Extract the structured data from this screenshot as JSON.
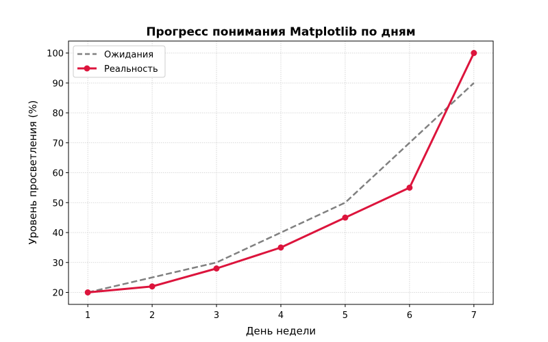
{
  "chart_data": {
    "type": "line",
    "title": "Прогресс понимания Matplotlib по дням",
    "xlabel": "День недели",
    "ylabel": "Уровень просветления (%)",
    "x": [
      1,
      2,
      3,
      4,
      5,
      6,
      7
    ],
    "xticks": [
      "1",
      "2",
      "3",
      "4",
      "5",
      "6",
      "7"
    ],
    "yticks": [
      "20",
      "30",
      "40",
      "50",
      "60",
      "70",
      "80",
      "90",
      "100"
    ],
    "xlim": [
      0.7,
      7.3
    ],
    "ylim": [
      16,
      104
    ],
    "grid": true,
    "legend_position": "upper left",
    "series": [
      {
        "name": "Ожидания",
        "values": [
          20,
          25,
          30,
          40,
          50,
          70,
          90
        ],
        "color": "#808080",
        "style": "dashed",
        "markers": false
      },
      {
        "name": "Реальность",
        "values": [
          20,
          22,
          28,
          35,
          45,
          55,
          100
        ],
        "color": "#dc143c",
        "style": "solid",
        "markers": true
      }
    ]
  }
}
